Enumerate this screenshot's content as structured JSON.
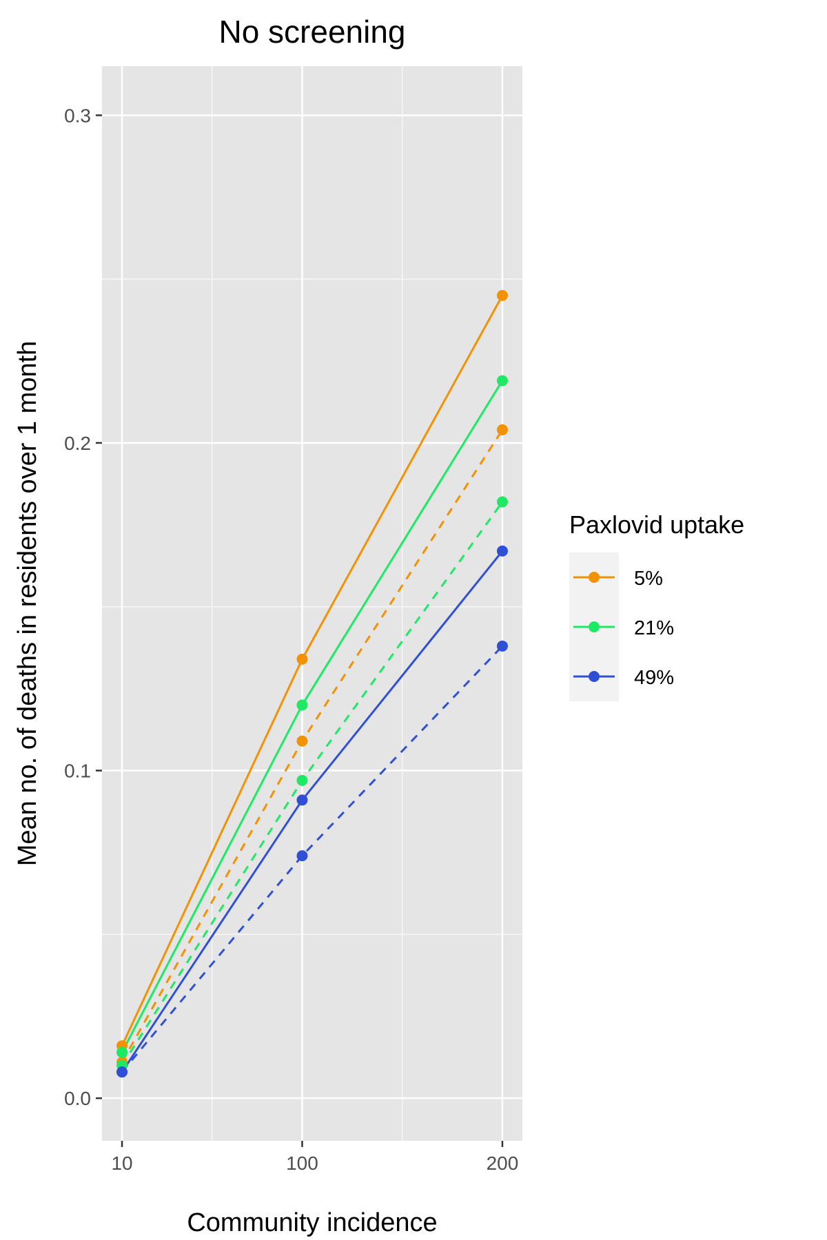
{
  "chart_data": {
    "type": "line",
    "title": "No screening",
    "xlabel": "Community incidence",
    "ylabel": "Mean no. of deaths in residents over 1 month",
    "x": [
      10,
      100,
      200
    ],
    "xlim": [
      0,
      210
    ],
    "ylim": [
      -0.013,
      0.315
    ],
    "y_ticks": [
      0.0,
      0.1,
      0.2,
      0.3
    ],
    "y_tick_labels": [
      "0.0",
      "0.1",
      "0.2",
      "0.3"
    ],
    "x_ticks": [
      10,
      100,
      200
    ],
    "x_tick_labels": [
      "10",
      "100",
      "200"
    ],
    "grid": true,
    "legend": {
      "title": "Paxlovid uptake",
      "placement": "right",
      "entries": [
        {
          "label": "5%",
          "color": "#F39200"
        },
        {
          "label": "21%",
          "color": "#1DE964"
        },
        {
          "label": "49%",
          "color": "#2F4FD6"
        }
      ]
    },
    "series": [
      {
        "name": "5%",
        "linetype": "solid",
        "color": "#F39200",
        "values": [
          0.016,
          0.134,
          0.245
        ]
      },
      {
        "name": "5%",
        "linetype": "dashed",
        "color": "#F39200",
        "values": [
          0.011,
          0.109,
          0.204
        ]
      },
      {
        "name": "21%",
        "linetype": "solid",
        "color": "#1DE964",
        "values": [
          0.014,
          0.12,
          0.219
        ]
      },
      {
        "name": "21%",
        "linetype": "dashed",
        "color": "#1DE964",
        "values": [
          0.01,
          0.097,
          0.182
        ]
      },
      {
        "name": "49%",
        "linetype": "solid",
        "color": "#2F4FD6",
        "values": [
          0.008,
          0.091,
          0.167
        ]
      },
      {
        "name": "49%",
        "linetype": "dashed",
        "color": "#2F4FD6",
        "values": [
          0.008,
          0.074,
          0.138
        ]
      }
    ]
  }
}
